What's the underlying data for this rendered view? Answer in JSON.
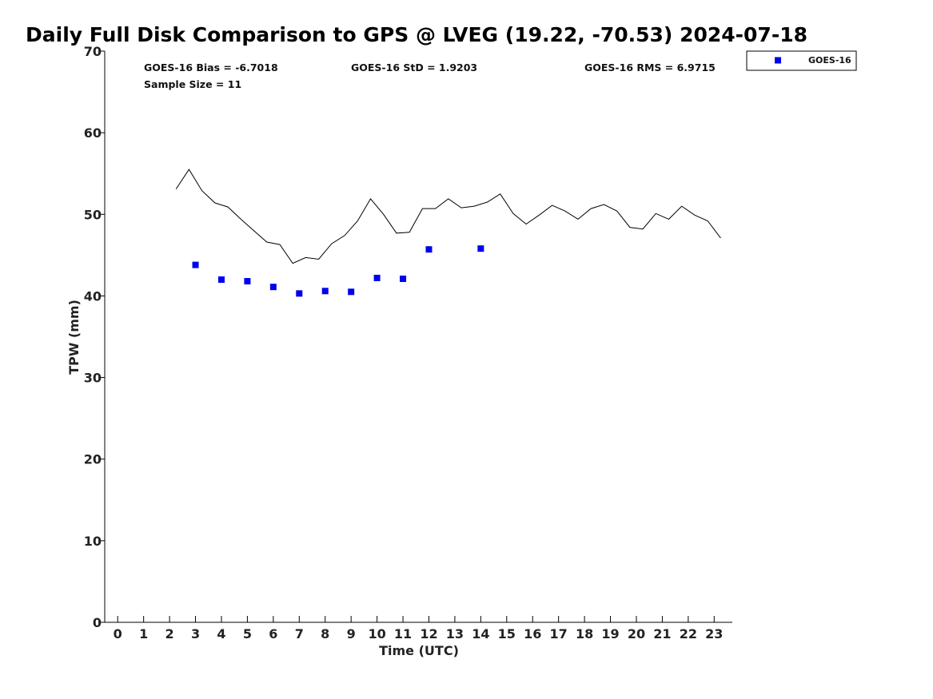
{
  "chart_data": {
    "type": "scatter",
    "title": "Daily Full Disk Comparison to GPS @ LVEG (19.22, -70.53) 2024-07-18",
    "xlabel": "Time (UTC)",
    "ylabel": "TPW (mm)",
    "xlim": [
      -0.5,
      23.7
    ],
    "ylim": [
      0,
      70
    ],
    "xticks": [
      0,
      1,
      2,
      3,
      4,
      5,
      6,
      7,
      8,
      9,
      10,
      11,
      12,
      13,
      14,
      15,
      16,
      17,
      18,
      19,
      20,
      21,
      22,
      23
    ],
    "yticks": [
      0,
      10,
      20,
      30,
      40,
      50,
      60,
      70
    ],
    "grid": false,
    "legend_position": "top-right, outside plot area",
    "stats": {
      "bias": "GOES-16 Bias = -6.7018",
      "std": "GOES-16 StD = 1.9203",
      "rms": "GOES-16 RMS = 6.9715",
      "sample": "Sample Size = 11"
    },
    "series": [
      {
        "kind": "line",
        "color": "#000000",
        "x": [
          2.25,
          2.75,
          3.25,
          3.75,
          4.25,
          4.75,
          5.25,
          5.75,
          6.25,
          6.75,
          7.25,
          7.75,
          8.25,
          8.75,
          9.25,
          9.75,
          10.25,
          10.75,
          11.25,
          11.75,
          12.25,
          12.75,
          13.25,
          13.75,
          14.25,
          14.75,
          15.25,
          15.75,
          16.25,
          16.75,
          17.25,
          17.75,
          18.25,
          18.75,
          19.25,
          19.75,
          20.25,
          20.75,
          21.25,
          21.75,
          22.25,
          22.75,
          23.25
        ],
        "y": [
          53.1,
          55.5,
          52.9,
          51.4,
          50.9,
          49.4,
          48.0,
          46.6,
          46.3,
          44.0,
          44.7,
          44.5,
          46.4,
          47.4,
          49.2,
          51.9,
          50.0,
          47.7,
          47.8,
          50.7,
          50.7,
          51.9,
          50.8,
          51.0,
          51.5,
          52.5,
          50.1,
          48.8,
          49.9,
          51.1,
          50.4,
          49.4,
          50.7,
          51.2,
          50.4,
          48.4,
          48.2,
          50.1,
          49.4,
          51.0,
          49.9,
          49.2,
          47.1
        ]
      },
      {
        "name": "GOES-16",
        "kind": "markers",
        "color": "#0000ee",
        "x": [
          3,
          4,
          5,
          6,
          7,
          8,
          9,
          10,
          11,
          12,
          14
        ],
        "y": [
          43.8,
          42.0,
          41.8,
          41.1,
          40.3,
          40.6,
          40.5,
          42.2,
          42.1,
          45.7,
          45.8
        ]
      }
    ]
  }
}
